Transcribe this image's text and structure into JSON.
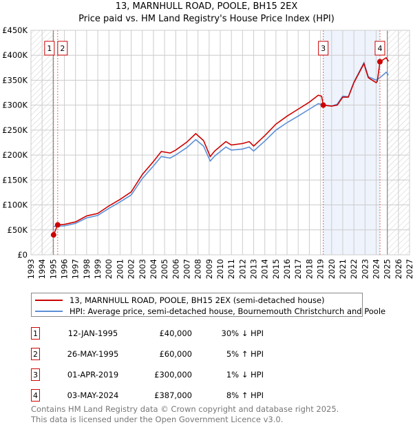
{
  "chart_data": {
    "type": "line",
    "title": "13, MARNHULL ROAD, POOLE, BH15 2EX",
    "subtitle": "Price paid vs. HM Land Registry's House Price Index (HPI)",
    "xlim": [
      1993,
      2027
    ],
    "ylim": [
      0,
      450000
    ],
    "x_ticks": [
      "1993",
      "1994",
      "1995",
      "1996",
      "1997",
      "1998",
      "1999",
      "2000",
      "2001",
      "2002",
      "2003",
      "2004",
      "2005",
      "2006",
      "2007",
      "2008",
      "2009",
      "2010",
      "2011",
      "2012",
      "2013",
      "2014",
      "2015",
      "2016",
      "2017",
      "2018",
      "2019",
      "2020",
      "2021",
      "2022",
      "2023",
      "2024",
      "2025",
      "2026",
      "2027"
    ],
    "y_ticks": [
      {
        "v": 0,
        "label": "£0"
      },
      {
        "v": 50000,
        "label": "£50K"
      },
      {
        "v": 100000,
        "label": "£100K"
      },
      {
        "v": 150000,
        "label": "£150K"
      },
      {
        "v": 200000,
        "label": "£200K"
      },
      {
        "v": 250000,
        "label": "£250K"
      },
      {
        "v": 300000,
        "label": "£300K"
      },
      {
        "v": 350000,
        "label": "£350K"
      },
      {
        "v": 400000,
        "label": "£400K"
      },
      {
        "v": 450000,
        "label": "£450K"
      }
    ],
    "grid": true,
    "hatched_ranges": [
      [
        1993,
        1995.0
      ],
      [
        2025.0,
        2027
      ]
    ],
    "highlight_range": [
      2019.25,
      2024.35
    ],
    "series": [
      {
        "name": "13, MARNHULL ROAD, POOLE, BH15 2EX (semi-detached house)",
        "color": "#cc0000",
        "points": [
          [
            1995.03,
            40000
          ],
          [
            1995.4,
            60000
          ],
          [
            1996,
            61000
          ],
          [
            1997,
            66000
          ],
          [
            1998,
            78000
          ],
          [
            1999,
            83000
          ],
          [
            2000,
            98000
          ],
          [
            2001,
            111000
          ],
          [
            2002,
            126000
          ],
          [
            2003,
            161000
          ],
          [
            2004,
            187000
          ],
          [
            2004.7,
            207000
          ],
          [
            2005.5,
            204000
          ],
          [
            2006,
            210000
          ],
          [
            2007,
            226000
          ],
          [
            2007.8,
            243000
          ],
          [
            2008.5,
            229000
          ],
          [
            2009.1,
            197000
          ],
          [
            2009.5,
            208000
          ],
          [
            2010.5,
            227000
          ],
          [
            2011,
            220000
          ],
          [
            2012,
            223000
          ],
          [
            2012.6,
            227000
          ],
          [
            2013,
            218000
          ],
          [
            2014,
            239000
          ],
          [
            2015,
            262000
          ],
          [
            2016,
            278000
          ],
          [
            2017,
            292000
          ],
          [
            2018,
            306000
          ],
          [
            2018.8,
            320000
          ],
          [
            2019.1,
            318000
          ],
          [
            2019.25,
            300000
          ],
          [
            2020,
            298000
          ],
          [
            2020.5,
            300000
          ],
          [
            2021,
            316000
          ],
          [
            2021.5,
            316000
          ],
          [
            2022,
            345000
          ],
          [
            2022.9,
            383000
          ],
          [
            2023.3,
            355000
          ],
          [
            2024,
            345000
          ],
          [
            2024.1,
            348000
          ],
          [
            2024.35,
            387000
          ],
          [
            2024.9,
            395000
          ],
          [
            2025.1,
            388000
          ]
        ]
      },
      {
        "name": "HPI: Average price, semi-detached house, Bournemouth Christchurch and Poole",
        "color": "#5b8fd6",
        "points": [
          [
            1995.0,
            57000
          ],
          [
            1996,
            58000
          ],
          [
            1997,
            63000
          ],
          [
            1998,
            74000
          ],
          [
            1999,
            79000
          ],
          [
            2000,
            93000
          ],
          [
            2001,
            106000
          ],
          [
            2002,
            120000
          ],
          [
            2003,
            153000
          ],
          [
            2004,
            178000
          ],
          [
            2004.7,
            197000
          ],
          [
            2005.5,
            194000
          ],
          [
            2006,
            200000
          ],
          [
            2007,
            215000
          ],
          [
            2007.8,
            231000
          ],
          [
            2008.5,
            218000
          ],
          [
            2009.1,
            188000
          ],
          [
            2009.5,
            198000
          ],
          [
            2010.5,
            216000
          ],
          [
            2011,
            210000
          ],
          [
            2012,
            212000
          ],
          [
            2012.6,
            216000
          ],
          [
            2013,
            208000
          ],
          [
            2014,
            228000
          ],
          [
            2015,
            250000
          ],
          [
            2016,
            265000
          ],
          [
            2017,
            278000
          ],
          [
            2018,
            292000
          ],
          [
            2018.8,
            303000
          ],
          [
            2019.3,
            300000
          ],
          [
            2020,
            298000
          ],
          [
            2020.5,
            302000
          ],
          [
            2021,
            318000
          ],
          [
            2021.5,
            317000
          ],
          [
            2022,
            346000
          ],
          [
            2022.9,
            385000
          ],
          [
            2023.3,
            357000
          ],
          [
            2024,
            350000
          ],
          [
            2024.5,
            358000
          ],
          [
            2024.9,
            366000
          ],
          [
            2025.1,
            360000
          ]
        ]
      }
    ],
    "sales": [
      {
        "id": "1",
        "x": 1995.03,
        "price": 40000
      },
      {
        "id": "2",
        "x": 1995.4,
        "price": 60000
      },
      {
        "id": "3",
        "x": 2019.25,
        "price": 300000
      },
      {
        "id": "4",
        "x": 2024.34,
        "price": 387000
      }
    ]
  },
  "title_line1": "13, MARNHULL ROAD, POOLE, BH15 2EX",
  "title_line2": "Price paid vs. HM Land Registry's House Price Index (HPI)",
  "legend": {
    "red": "13, MARNHULL ROAD, POOLE, BH15 2EX (semi-detached house)",
    "blue": "HPI: Average price, semi-detached house, Bournemouth Christchurch and Poole"
  },
  "table": [
    {
      "id": "1",
      "date": "12-JAN-1995",
      "price": "£40,000",
      "diff": "30% ↓ HPI"
    },
    {
      "id": "2",
      "date": "26-MAY-1995",
      "price": "£60,000",
      "diff": "5% ↑ HPI"
    },
    {
      "id": "3",
      "date": "01-APR-2019",
      "price": "£300,000",
      "diff": "1% ↓ HPI"
    },
    {
      "id": "4",
      "date": "03-MAY-2024",
      "price": "£387,000",
      "diff": "8% ↑ HPI"
    }
  ],
  "footer": {
    "line1": "Contains HM Land Registry data © Crown copyright and database right 2025.",
    "line2": "This data is licensed under the Open Government Licence v3.0."
  }
}
